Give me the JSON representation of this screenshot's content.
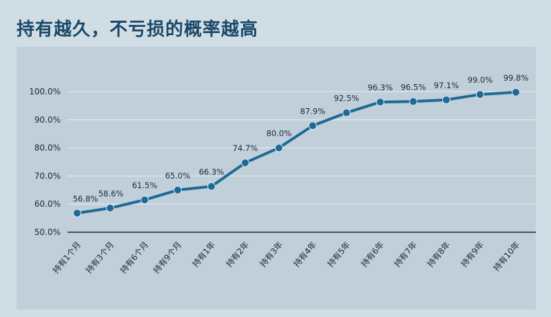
{
  "title": "持有越久，不亏损的概率越高",
  "chart_data": {
    "type": "line",
    "title": "持有越久，不亏损的概率越高",
    "xlabel": "",
    "ylabel": "",
    "categories": [
      "持有1个月",
      "持有3个月",
      "持有6个月",
      "持有9个月",
      "持有1年",
      "持有2年",
      "持有3年",
      "持有4年",
      "持有5年",
      "持有6年",
      "持有7年",
      "持有8年",
      "持有9年",
      "持有10年"
    ],
    "values": [
      56.8,
      58.6,
      61.5,
      65.0,
      66.3,
      74.7,
      80.0,
      87.9,
      92.5,
      96.3,
      96.5,
      97.1,
      99.0,
      99.8
    ],
    "value_labels": [
      "56.8%",
      "58.6%",
      "61.5%",
      "65.0%",
      "66.3%",
      "74.7%",
      "80.0%",
      "87.9%",
      "92.5%",
      "96.3%",
      "96.5%",
      "97.1%",
      "99.0%",
      "99.8%"
    ],
    "ylim": [
      50,
      100
    ],
    "yticks": [
      "50.0%",
      "60.0%",
      "70.0%",
      "80.0%",
      "90.0%",
      "100.0%"
    ],
    "grid": true,
    "legend": "none",
    "colors": {
      "line": "#1d6a96",
      "marker": "#1d6a96",
      "grid": "#dde8ef",
      "axis": "#1c2a36",
      "background": "#c0cfd9",
      "title": "#1b4868"
    }
  }
}
